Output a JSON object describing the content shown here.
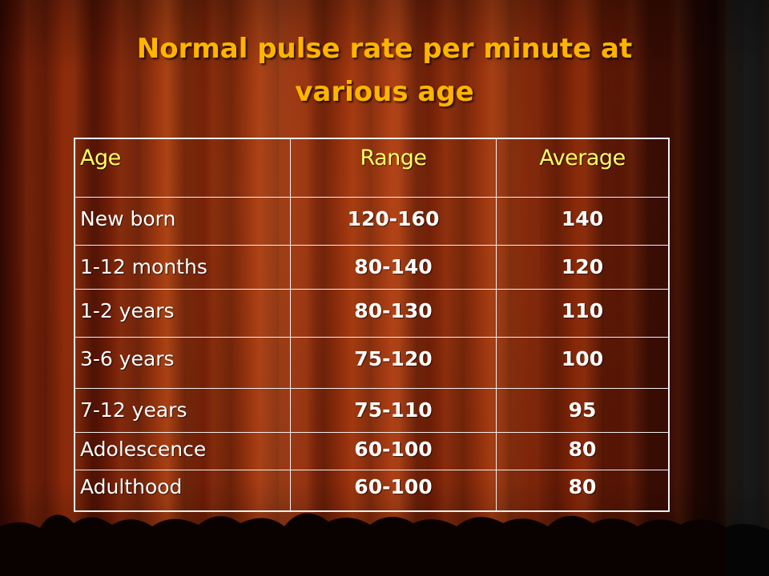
{
  "slide": {
    "title_line1": "Normal pulse rate per minute at",
    "title_line2": "various age"
  },
  "table": {
    "headers": {
      "age": "Age",
      "range": "Range",
      "average": "Average"
    },
    "rows": [
      {
        "age": "New born",
        "range": "120-160",
        "average": "140"
      },
      {
        "age": "1-12 months",
        "range": "80-140",
        "average": "120"
      },
      {
        "age": "1-2 years",
        "range": "80-130",
        "average": "110"
      },
      {
        "age": "3-6 years",
        "range": "75-120",
        "average": "100"
      },
      {
        "age": "7-12 years",
        "range": "75-110",
        "average": "95"
      },
      {
        "age": "Adolescence",
        "range": "60-100",
        "average": "80"
      },
      {
        "age": "Adulthood",
        "range": "60-100",
        "average": "80"
      }
    ]
  },
  "colors": {
    "title": "#ffb400",
    "header_text": "#ffff66",
    "cell_text": "#ffffff",
    "curtain": "#8c2a0a"
  }
}
